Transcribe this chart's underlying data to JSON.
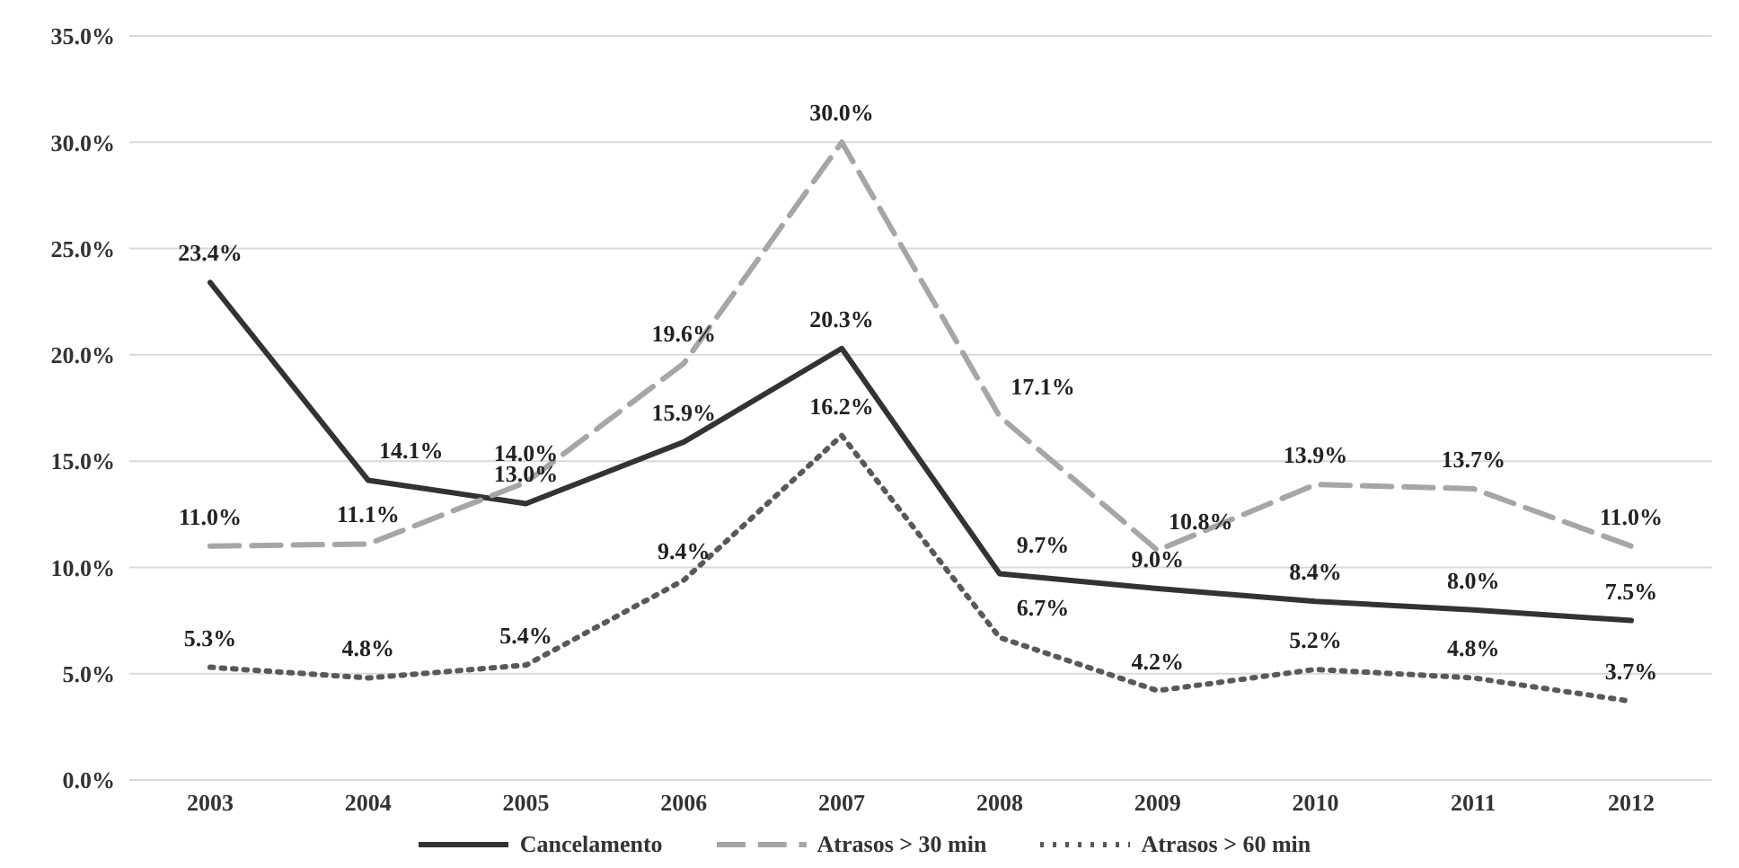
{
  "chart_data": {
    "type": "line",
    "categories": [
      "2003",
      "2004",
      "2005",
      "2006",
      "2007",
      "2008",
      "2009",
      "2010",
      "2011",
      "2012"
    ],
    "ylim": [
      0,
      35
    ],
    "yticks": [
      {
        "value": 0,
        "label": "0.0%"
      },
      {
        "value": 5,
        "label": "5.0%"
      },
      {
        "value": 10,
        "label": "10.0%"
      },
      {
        "value": 15,
        "label": "15.0%"
      },
      {
        "value": 20,
        "label": "20.0%"
      },
      {
        "value": 25,
        "label": "25.0%"
      },
      {
        "value": 30,
        "label": "30.0%"
      },
      {
        "value": 35,
        "label": "35.0%"
      }
    ],
    "grid": "y",
    "legend": "bottom",
    "marker": "none",
    "series": [
      {
        "name": "Cancelamento",
        "color": "#333333",
        "line_style": "solid",
        "values": [
          23.4,
          14.1,
          13.0,
          15.9,
          20.3,
          9.7,
          9.0,
          8.4,
          8.0,
          7.5
        ],
        "value_labels": [
          "23.4%",
          "14.1%",
          "13.0%",
          "15.9%",
          "20.3%",
          "9.7%",
          "9.0%",
          "8.4%",
          "8.0%",
          "7.5%"
        ]
      },
      {
        "name": "Atrasos > 30 min",
        "color": "#a6a6a6",
        "line_style": "dashed",
        "values": [
          11.0,
          11.1,
          14.0,
          19.6,
          30.0,
          17.1,
          10.8,
          13.9,
          13.7,
          11.0
        ],
        "value_labels": [
          "11.0%",
          "11.1%",
          "14.0%",
          "19.6%",
          "30.0%",
          "17.1%",
          "10.8%",
          "13.9%",
          "13.7%",
          "11.0%"
        ]
      },
      {
        "name": "Atrasos > 60 min",
        "color": "#595959",
        "line_style": "dotted",
        "values": [
          5.3,
          4.8,
          5.4,
          9.4,
          16.2,
          6.7,
          4.2,
          5.2,
          4.8,
          3.7
        ],
        "value_labels": [
          "5.3%",
          "4.8%",
          "5.4%",
          "9.4%",
          "16.2%",
          "6.7%",
          "4.2%",
          "5.2%",
          "4.8%",
          "3.7%"
        ]
      }
    ]
  }
}
